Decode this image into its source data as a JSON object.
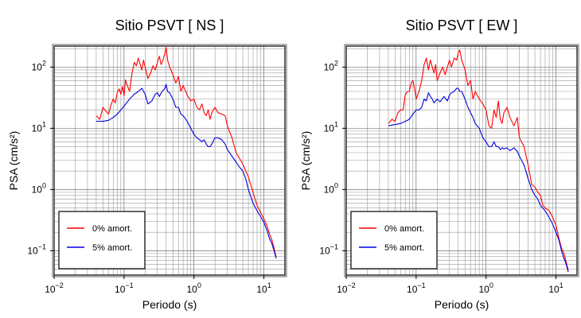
{
  "chart_data": [
    {
      "type": "line",
      "title": "Sitio PSVT [ NS ]",
      "xlabel": "Periodo (s)",
      "ylabel": "PSA (cm/s²)",
      "xscale": "log",
      "yscale": "log",
      "xlim": [
        0.01,
        20
      ],
      "ylim": [
        0.04,
        220
      ],
      "grid": true,
      "legend": "bottom-left",
      "xticks": [
        {
          "value": 0.01,
          "base": "10",
          "exp": "−2"
        },
        {
          "value": 0.1,
          "base": "10",
          "exp": "−1"
        },
        {
          "value": 1,
          "base": "10",
          "exp": "0"
        },
        {
          "value": 10,
          "base": "10",
          "exp": "1"
        }
      ],
      "yticks": [
        {
          "value": 0.1,
          "base": "10",
          "exp": "−1"
        },
        {
          "value": 1,
          "base": "10",
          "exp": "0"
        },
        {
          "value": 10,
          "base": "10",
          "exp": "1"
        },
        {
          "value": 100,
          "base": "10",
          "exp": "2"
        }
      ],
      "series": [
        {
          "name": "0% amort.",
          "color": "#ff0000",
          "points": [
            [
              0.04,
              16
            ],
            [
              0.045,
              14
            ],
            [
              0.05,
              22
            ],
            [
              0.055,
              19
            ],
            [
              0.06,
              17
            ],
            [
              0.065,
              24
            ],
            [
              0.07,
              30
            ],
            [
              0.075,
              26
            ],
            [
              0.08,
              38
            ],
            [
              0.085,
              44
            ],
            [
              0.09,
              36
            ],
            [
              0.095,
              48
            ],
            [
              0.1,
              34
            ],
            [
              0.105,
              62
            ],
            [
              0.11,
              52
            ],
            [
              0.12,
              40
            ],
            [
              0.13,
              80
            ],
            [
              0.14,
              120
            ],
            [
              0.15,
              105
            ],
            [
              0.16,
              140
            ],
            [
              0.17,
              110
            ],
            [
              0.18,
              90
            ],
            [
              0.19,
              130
            ],
            [
              0.2,
              100
            ],
            [
              0.22,
              65
            ],
            [
              0.24,
              80
            ],
            [
              0.26,
              105
            ],
            [
              0.28,
              90
            ],
            [
              0.3,
              120
            ],
            [
              0.32,
              150
            ],
            [
              0.34,
              110
            ],
            [
              0.36,
              130
            ],
            [
              0.38,
              160
            ],
            [
              0.4,
              210
            ],
            [
              0.42,
              130
            ],
            [
              0.45,
              100
            ],
            [
              0.5,
              75
            ],
            [
              0.55,
              55
            ],
            [
              0.6,
              70
            ],
            [
              0.65,
              40
            ],
            [
              0.7,
              50
            ],
            [
              0.8,
              35
            ],
            [
              0.9,
              28
            ],
            [
              1.0,
              30
            ],
            [
              1.1,
              22
            ],
            [
              1.2,
              20
            ],
            [
              1.3,
              25
            ],
            [
              1.4,
              18
            ],
            [
              1.5,
              16
            ],
            [
              1.6,
              20
            ],
            [
              1.7,
              14
            ],
            [
              1.8,
              18
            ],
            [
              2.0,
              22
            ],
            [
              2.2,
              18
            ],
            [
              2.5,
              17
            ],
            [
              2.8,
              16
            ],
            [
              3.0,
              11
            ],
            [
              3.5,
              7
            ],
            [
              4.0,
              4
            ],
            [
              4.5,
              3.2
            ],
            [
              5,
              2.6
            ],
            [
              6,
              1.6
            ],
            [
              7,
              0.9
            ],
            [
              8,
              0.55
            ],
            [
              9,
              0.42
            ],
            [
              10,
              0.33
            ],
            [
              11,
              0.26
            ],
            [
              12,
              0.19
            ],
            [
              13,
              0.15
            ],
            [
              14,
              0.11
            ],
            [
              15,
              0.078
            ]
          ]
        },
        {
          "name": "5% amort.",
          "color": "#0000dd",
          "points": [
            [
              0.04,
              13
            ],
            [
              0.05,
              13
            ],
            [
              0.06,
              13.5
            ],
            [
              0.07,
              15
            ],
            [
              0.08,
              17
            ],
            [
              0.09,
              20
            ],
            [
              0.1,
              23
            ],
            [
              0.12,
              30
            ],
            [
              0.14,
              36
            ],
            [
              0.16,
              40
            ],
            [
              0.18,
              45
            ],
            [
              0.2,
              36
            ],
            [
              0.22,
              25
            ],
            [
              0.25,
              28
            ],
            [
              0.28,
              36
            ],
            [
              0.3,
              38
            ],
            [
              0.32,
              33
            ],
            [
              0.35,
              40
            ],
            [
              0.38,
              44
            ],
            [
              0.4,
              52
            ],
            [
              0.42,
              40
            ],
            [
              0.45,
              38
            ],
            [
              0.5,
              30
            ],
            [
              0.55,
              22
            ],
            [
              0.6,
              22
            ],
            [
              0.65,
              17
            ],
            [
              0.7,
              16
            ],
            [
              0.8,
              13
            ],
            [
              0.9,
              10
            ],
            [
              1.0,
              8
            ],
            [
              1.1,
              7
            ],
            [
              1.2,
              6.5
            ],
            [
              1.3,
              6
            ],
            [
              1.4,
              6.5
            ],
            [
              1.5,
              5.5
            ],
            [
              1.6,
              5
            ],
            [
              1.7,
              5
            ],
            [
              1.8,
              5.5
            ],
            [
              2.0,
              7
            ],
            [
              2.2,
              7
            ],
            [
              2.5,
              6.5
            ],
            [
              2.8,
              5.5
            ],
            [
              3.0,
              4.5
            ],
            [
              3.5,
              3.5
            ],
            [
              4.0,
              2.8
            ],
            [
              4.5,
              2.3
            ],
            [
              5,
              2.0
            ],
            [
              5.5,
              1.5
            ],
            [
              6,
              1.0
            ],
            [
              7,
              0.6
            ],
            [
              8,
              0.45
            ],
            [
              9,
              0.36
            ],
            [
              10,
              0.29
            ],
            [
              11,
              0.22
            ],
            [
              12,
              0.16
            ],
            [
              13,
              0.13
            ],
            [
              14,
              0.1
            ],
            [
              15,
              0.075
            ]
          ]
        }
      ]
    },
    {
      "type": "line",
      "title": "Sitio PSVT [ EW ]",
      "xlabel": "Periodo (s)",
      "ylabel": "PSA (cm/s²)",
      "xscale": "log",
      "yscale": "log",
      "xlim": [
        0.01,
        20
      ],
      "ylim": [
        0.04,
        220
      ],
      "grid": true,
      "legend": "bottom-left",
      "xticks": [
        {
          "value": 0.01,
          "base": "10",
          "exp": "−2"
        },
        {
          "value": 0.1,
          "base": "10",
          "exp": "−1"
        },
        {
          "value": 1,
          "base": "10",
          "exp": "0"
        },
        {
          "value": 10,
          "base": "10",
          "exp": "1"
        }
      ],
      "yticks": [
        {
          "value": 0.1,
          "base": "10",
          "exp": "−1"
        },
        {
          "value": 1,
          "base": "10",
          "exp": "0"
        },
        {
          "value": 10,
          "base": "10",
          "exp": "1"
        },
        {
          "value": 100,
          "base": "10",
          "exp": "2"
        }
      ],
      "series": [
        {
          "name": "0% amort.",
          "color": "#ff0000",
          "points": [
            [
              0.04,
              12
            ],
            [
              0.045,
              14
            ],
            [
              0.05,
              13
            ],
            [
              0.055,
              18
            ],
            [
              0.06,
              20
            ],
            [
              0.065,
              20
            ],
            [
              0.07,
              35
            ],
            [
              0.075,
              40
            ],
            [
              0.08,
              40
            ],
            [
              0.085,
              55
            ],
            [
              0.09,
              60
            ],
            [
              0.095,
              45
            ],
            [
              0.1,
              30
            ],
            [
              0.11,
              40
            ],
            [
              0.12,
              60
            ],
            [
              0.13,
              110
            ],
            [
              0.14,
              140
            ],
            [
              0.15,
              90
            ],
            [
              0.16,
              130
            ],
            [
              0.17,
              100
            ],
            [
              0.18,
              80
            ],
            [
              0.19,
              110
            ],
            [
              0.2,
              60
            ],
            [
              0.22,
              80
            ],
            [
              0.24,
              100
            ],
            [
              0.26,
              75
            ],
            [
              0.28,
              100
            ],
            [
              0.3,
              130
            ],
            [
              0.32,
              100
            ],
            [
              0.35,
              140
            ],
            [
              0.38,
              130
            ],
            [
              0.4,
              170
            ],
            [
              0.42,
              190
            ],
            [
              0.45,
              130
            ],
            [
              0.5,
              90
            ],
            [
              0.55,
              50
            ],
            [
              0.6,
              60
            ],
            [
              0.65,
              30
            ],
            [
              0.7,
              40
            ],
            [
              0.8,
              30
            ],
            [
              0.9,
              25
            ],
            [
              1.0,
              20
            ],
            [
              1.1,
              11
            ],
            [
              1.2,
              10
            ],
            [
              1.3,
              20
            ],
            [
              1.4,
              15
            ],
            [
              1.5,
              28
            ],
            [
              1.6,
              14
            ],
            [
              1.7,
              12
            ],
            [
              1.8,
              18
            ],
            [
              2.0,
              22
            ],
            [
              2.2,
              15
            ],
            [
              2.5,
              11
            ],
            [
              2.8,
              15
            ],
            [
              3.0,
              7
            ],
            [
              3.5,
              5
            ],
            [
              4.0,
              2.5
            ],
            [
              4.5,
              1.2
            ],
            [
              5,
              1.1
            ],
            [
              5.5,
              0.9
            ],
            [
              6,
              0.8
            ],
            [
              6.5,
              0.55
            ],
            [
              7,
              0.5
            ],
            [
              8,
              0.45
            ],
            [
              9,
              0.35
            ],
            [
              10,
              0.26
            ],
            [
              11,
              0.16
            ],
            [
              12,
              0.11
            ],
            [
              13,
              0.09
            ],
            [
              14,
              0.065
            ],
            [
              15,
              0.048
            ]
          ]
        },
        {
          "name": "5% amort.",
          "color": "#0000dd",
          "points": [
            [
              0.04,
              11
            ],
            [
              0.05,
              11.5
            ],
            [
              0.06,
              12
            ],
            [
              0.07,
              13
            ],
            [
              0.08,
              14
            ],
            [
              0.09,
              17
            ],
            [
              0.1,
              20
            ],
            [
              0.11,
              20
            ],
            [
              0.12,
              22
            ],
            [
              0.13,
              30
            ],
            [
              0.14,
              28
            ],
            [
              0.15,
              38
            ],
            [
              0.16,
              33
            ],
            [
              0.17,
              30
            ],
            [
              0.18,
              26
            ],
            [
              0.2,
              30
            ],
            [
              0.22,
              27
            ],
            [
              0.25,
              33
            ],
            [
              0.28,
              28
            ],
            [
              0.3,
              35
            ],
            [
              0.32,
              38
            ],
            [
              0.35,
              40
            ],
            [
              0.38,
              45
            ],
            [
              0.4,
              45
            ],
            [
              0.42,
              40
            ],
            [
              0.45,
              40
            ],
            [
              0.5,
              30
            ],
            [
              0.55,
              22
            ],
            [
              0.6,
              18
            ],
            [
              0.65,
              15
            ],
            [
              0.7,
              12
            ],
            [
              0.8,
              10
            ],
            [
              0.9,
              7
            ],
            [
              1.0,
              6
            ],
            [
              1.1,
              5
            ],
            [
              1.2,
              5
            ],
            [
              1.3,
              6
            ],
            [
              1.4,
              5
            ],
            [
              1.5,
              5
            ],
            [
              1.6,
              4.5
            ],
            [
              1.7,
              4.8
            ],
            [
              1.8,
              4.6
            ],
            [
              2.0,
              4.8
            ],
            [
              2.2,
              4.3
            ],
            [
              2.5,
              4.8
            ],
            [
              2.8,
              4.2
            ],
            [
              3.0,
              3.5
            ],
            [
              3.5,
              2.5
            ],
            [
              4.0,
              1.5
            ],
            [
              4.5,
              1.0
            ],
            [
              5,
              0.8
            ],
            [
              5.5,
              0.7
            ],
            [
              6,
              0.55
            ],
            [
              7,
              0.45
            ],
            [
              8,
              0.35
            ],
            [
              9,
              0.27
            ],
            [
              10,
              0.2
            ],
            [
              11,
              0.15
            ],
            [
              12,
              0.1
            ],
            [
              13,
              0.075
            ],
            [
              14,
              0.06
            ],
            [
              15,
              0.045
            ]
          ]
        }
      ]
    }
  ]
}
